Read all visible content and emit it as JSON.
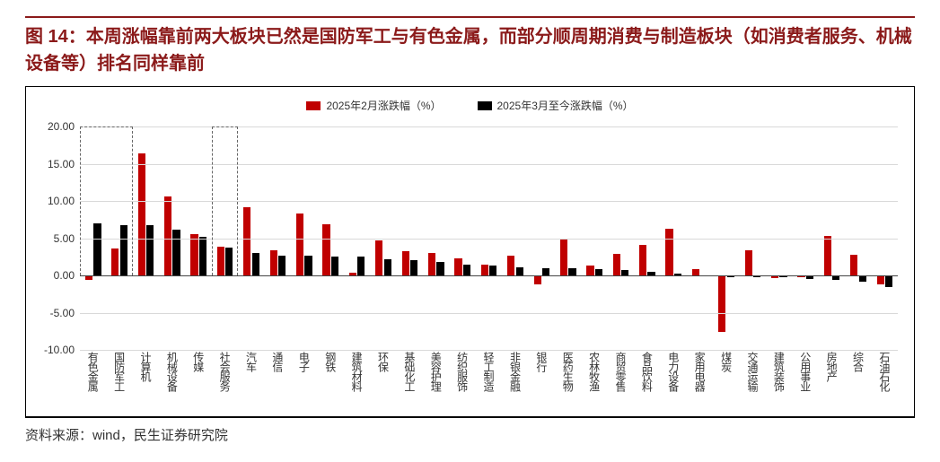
{
  "figure": {
    "title": "图 14：本周涨幅靠前两大板块已然是国防军工与有色金属，而部分顺周期消费与制造板块（如消费者服务、机械设备等）排名同样靠前",
    "title_color": "#8b1a1a",
    "title_fontsize": 20,
    "source": "资料来源：wind，民生证券研究院",
    "border_color": "#000000",
    "background_color": "#ffffff"
  },
  "chart": {
    "type": "bar",
    "legend": [
      {
        "label": "2025年2月涨跌幅（%）",
        "color": "#c00000"
      },
      {
        "label": "2025年3月至今涨跌幅（%）",
        "color": "#000000"
      }
    ],
    "ylim": [
      -10,
      20
    ],
    "ytick_step": 5,
    "yticks": [
      "-10.00",
      "-5.00",
      "0.00",
      "5.00",
      "10.00",
      "15.00",
      "20.00"
    ],
    "grid_color": "#d9d9d9",
    "zero_line_color": "#444444",
    "label_fontsize": 12,
    "bar_group_gap": 0.2,
    "categories": [
      "有色金属",
      "国防军工",
      "计算机",
      "机械设备",
      "传媒",
      "社会服务",
      "汽车",
      "通信",
      "电子",
      "钢铁",
      "建筑材料",
      "环保",
      "基础化工",
      "美容护理",
      "纺织服饰",
      "轻工制造",
      "非银金融",
      "银行",
      "医药生物",
      "农林牧渔",
      "商贸零售",
      "食品饮料",
      "电力设备",
      "家用电器",
      "煤炭",
      "交通运输",
      "建筑装饰",
      "公用事业",
      "房地产",
      "综合",
      "石油石化"
    ],
    "series": [
      {
        "name": "2025年2月涨跌幅（%）",
        "color": "#c00000",
        "values": [
          -0.6,
          3.6,
          16.4,
          10.6,
          5.6,
          3.8,
          9.2,
          3.4,
          8.3,
          6.9,
          0.4,
          4.7,
          3.2,
          3.0,
          2.3,
          1.5,
          2.6,
          -1.2,
          5.0,
          1.3,
          2.9,
          4.1,
          6.3,
          0.8,
          -7.6,
          3.4,
          -0.4,
          -0.2,
          5.3,
          2.8,
          -1.2
        ]
      },
      {
        "name": "2025年3月至今涨跌幅（%）",
        "color": "#000000",
        "values": [
          7.0,
          6.8,
          6.8,
          6.1,
          5.2,
          3.7,
          3.0,
          2.7,
          2.6,
          2.5,
          2.5,
          2.2,
          2.0,
          1.8,
          1.5,
          1.3,
          1.1,
          1.0,
          1.0,
          0.9,
          0.7,
          0.5,
          0.3,
          0.0,
          -0.2,
          -0.3,
          -0.3,
          -0.5,
          -0.6,
          -0.9,
          -1.6
        ]
      }
    ],
    "highlight_boxes": [
      {
        "start_index": 0,
        "end_index": 1
      },
      {
        "start_index": 5,
        "end_index": 5
      }
    ]
  }
}
